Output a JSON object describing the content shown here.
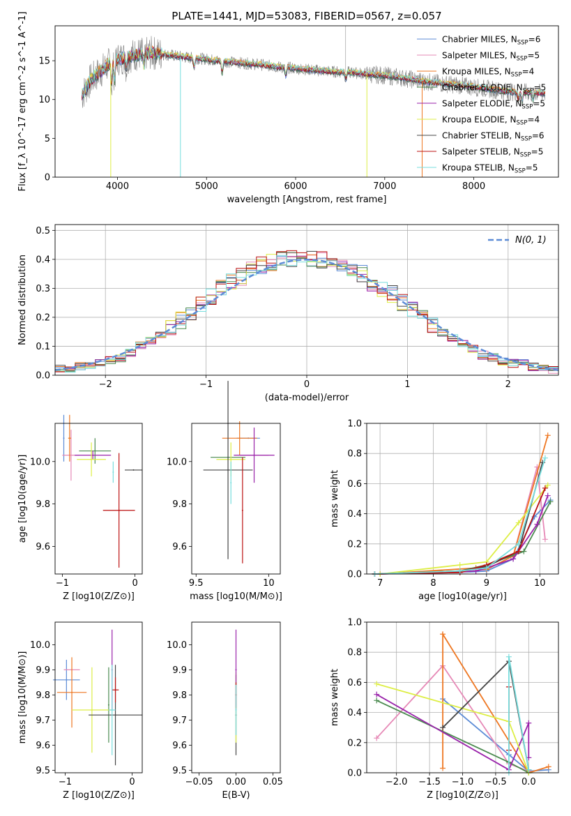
{
  "title": "PLATE=1441, MJD=53083, FIBERID=0567, z=0.057",
  "colors": {
    "Chabrier MILES": "#5b8bd6",
    "Salpeter MILES": "#e688b6",
    "Kroupa MILES": "#ee7722",
    "Chabrier ELODIE": "#4a8a4f",
    "Salpeter ELODIE": "#9922aa",
    "Kroupa ELODIE": "#ddee44",
    "Chabrier STELIB": "#444444",
    "Salpeter STELIB": "#bb1111",
    "Kroupa STELIB": "#77dddd",
    "Data": "#808080"
  },
  "chart_data": [
    {
      "id": "spectrum",
      "type": "line",
      "xlabel": "wavelength [Angstrom, rest frame]",
      "ylabel": "Flux [f_λ 10^-17 erg cm^-2 s^-1 A^-1]",
      "xlim": [
        3300,
        8950
      ],
      "ylim": [
        0,
        19.5
      ],
      "xticks": [
        4000,
        5000,
        6000,
        7000,
        8000
      ],
      "yticks": [
        0,
        5,
        10,
        15
      ],
      "legend": [
        {
          "name": "Chabrier MILES",
          "nssp": "6"
        },
        {
          "name": "Salpeter MILES",
          "nssp": "5"
        },
        {
          "name": "Kroupa MILES",
          "nssp": "4"
        },
        {
          "name": "Chabrier ELODIE",
          "nssp": "5"
        },
        {
          "name": "Salpeter ELODIE",
          "nssp": "5"
        },
        {
          "name": "Kroupa ELODIE",
          "nssp": "4"
        },
        {
          "name": "Chabrier STELIB",
          "nssp": "6"
        },
        {
          "name": "Salpeter STELIB",
          "nssp": "5"
        },
        {
          "name": "Kroupa STELIB",
          "nssp": "5"
        }
      ],
      "continuum": [
        [
          3600,
          10.5
        ],
        [
          3700,
          12.5
        ],
        [
          3800,
          13.5
        ],
        [
          3900,
          14.5
        ],
        [
          4000,
          15.2
        ],
        [
          4200,
          15.8
        ],
        [
          4400,
          16.0
        ],
        [
          4600,
          15.7
        ],
        [
          4800,
          15.4
        ],
        [
          5000,
          15.2
        ],
        [
          5200,
          14.9
        ],
        [
          5400,
          14.7
        ],
        [
          5600,
          14.5
        ],
        [
          5800,
          14.2
        ],
        [
          6000,
          14.0
        ],
        [
          6200,
          13.8
        ],
        [
          6400,
          13.6
        ],
        [
          6600,
          13.5
        ],
        [
          6800,
          13.3
        ],
        [
          7000,
          13.1
        ],
        [
          7200,
          12.8
        ],
        [
          7400,
          12.4
        ],
        [
          7600,
          12.1
        ],
        [
          7800,
          11.9
        ],
        [
          8000,
          11.6
        ],
        [
          8200,
          11.3
        ],
        [
          8400,
          11.0
        ],
        [
          8600,
          10.9
        ],
        [
          8800,
          10.8
        ]
      ]
    },
    {
      "id": "residuals",
      "type": "bar",
      "xlabel": "(data-model)/error",
      "ylabel": "Normed distribution",
      "xlim": [
        -2.5,
        2.5
      ],
      "ylim": [
        0,
        0.52
      ],
      "xticks": [
        -2,
        -1,
        0,
        1,
        2
      ],
      "yticks": [
        0.0,
        0.1,
        0.2,
        0.3,
        0.4,
        0.5
      ],
      "bin_width": 0.1,
      "gaussian_label": "N(0, 1)",
      "base_profile": [
        0.02,
        0.02,
        0.03,
        0.03,
        0.04,
        0.05,
        0.06,
        0.08,
        0.1,
        0.12,
        0.14,
        0.16,
        0.19,
        0.22,
        0.24,
        0.27,
        0.3,
        0.32,
        0.34,
        0.37,
        0.38,
        0.39,
        0.4,
        0.4,
        0.4,
        0.4,
        0.4,
        0.39,
        0.38,
        0.37,
        0.35,
        0.32,
        0.3,
        0.28,
        0.25,
        0.23,
        0.2,
        0.17,
        0.15,
        0.13,
        0.11,
        0.09,
        0.07,
        0.06,
        0.05,
        0.04,
        0.04,
        0.03,
        0.03,
        0.02
      ]
    },
    {
      "id": "age-vs-Z",
      "type": "scatter",
      "xlabel": "Z [log10(Z/Z⊙)]",
      "ylabel": "age [log10(age/yr)]",
      "xlim": [
        -1.1,
        0.1
      ],
      "ylim": [
        9.47,
        10.18
      ],
      "xticks": [
        -1,
        0
      ],
      "yticks": [
        9.6,
        9.8,
        10.0
      ],
      "points": [
        {
          "model": "Chabrier MILES",
          "x": -0.98,
          "xe": 0.0,
          "y": 10.11,
          "ye": 0.11
        },
        {
          "model": "Salpeter MILES",
          "x": -0.88,
          "xe": 0.12,
          "y": 10.03,
          "ye": 0.12
        },
        {
          "model": "Kroupa MILES",
          "x": -0.9,
          "xe": 0.02,
          "y": 10.11,
          "ye": 0.11
        },
        {
          "model": "Chabrier ELODIE",
          "x": -0.55,
          "xe": 0.22,
          "y": 10.05,
          "ye": 0.06
        },
        {
          "model": "Salpeter ELODIE",
          "x": -0.58,
          "xe": 0.25,
          "y": 10.03,
          "ye": 0.02
        },
        {
          "model": "Kroupa ELODIE",
          "x": -0.6,
          "xe": 0.2,
          "y": 10.01,
          "ye": 0.08
        },
        {
          "model": "Chabrier STELIB",
          "x": -0.02,
          "xe": 0.12,
          "y": 9.96,
          "ye": 0.0
        },
        {
          "model": "Salpeter STELIB",
          "x": -0.22,
          "xe": 0.22,
          "y": 9.77,
          "ye": 0.27
        },
        {
          "model": "Kroupa STELIB",
          "x": -0.3,
          "xe": 0.0,
          "y": 9.95,
          "ye": 0.05
        }
      ]
    },
    {
      "id": "age-vs-mass",
      "type": "scatter",
      "xlabel": "mass [log10(M/M⊙)]",
      "ylabel": "",
      "xlim": [
        9.47,
        10.08
      ],
      "ylim": [
        9.47,
        10.18
      ],
      "xticks": [
        9.5,
        10.0
      ],
      "yticks": [
        9.6,
        9.8,
        10.0
      ],
      "points": [
        {
          "model": "Chabrier MILES",
          "x": 9.86,
          "xe": 0.08,
          "y": 10.11,
          "ye": 0.0
        },
        {
          "model": "Salpeter MILES",
          "x": 9.9,
          "xe": 0.1,
          "y": 10.03,
          "ye": 0.0
        },
        {
          "model": "Kroupa MILES",
          "x": 9.8,
          "xe": 0.12,
          "y": 10.11,
          "ye": 0.08
        },
        {
          "model": "Chabrier ELODIE",
          "x": 9.72,
          "xe": 0.12,
          "y": 10.02,
          "ye": 0.0
        },
        {
          "model": "Salpeter ELODIE",
          "x": 9.9,
          "xe": 0.14,
          "y": 10.03,
          "ye": 0.13
        },
        {
          "model": "Kroupa ELODIE",
          "x": 9.74,
          "xe": 0.1,
          "y": 10.01,
          "ye": 0.08
        },
        {
          "model": "Chabrier STELIB",
          "x": 9.72,
          "xe": 0.17,
          "y": 9.96,
          "ye": 0.42
        },
        {
          "model": "Salpeter STELIB",
          "x": 9.82,
          "xe": 0.0,
          "y": 9.77,
          "ye": 0.25
        },
        {
          "model": "Kroupa STELIB",
          "x": 9.74,
          "xe": 0.0,
          "y": 9.9,
          "ye": 0.1
        }
      ]
    },
    {
      "id": "mass-weight-vs-age",
      "type": "line",
      "xlabel": "age [log10(age/yr)]",
      "ylabel": "mass weight",
      "xlim": [
        6.75,
        10.35
      ],
      "ylim": [
        0,
        1.0
      ],
      "xticks": [
        7,
        8,
        9,
        10
      ],
      "yticks": [
        0.0,
        0.2,
        0.4,
        0.6,
        0.8,
        1.0
      ],
      "series": [
        {
          "model": "Chabrier MILES",
          "x": [
            6.9,
            8.5,
            9.0,
            9.5,
            9.9,
            10.2
          ],
          "y": [
            0.0,
            0.01,
            0.02,
            0.1,
            0.38,
            0.49
          ]
        },
        {
          "model": "Salpeter MILES",
          "x": [
            6.9,
            8.5,
            9.0,
            9.5,
            9.95,
            10.1
          ],
          "y": [
            0.0,
            0.01,
            0.03,
            0.12,
            0.71,
            0.23
          ]
        },
        {
          "model": "Kroupa MILES",
          "x": [
            7.0,
            8.8,
            9.0,
            9.5,
            10.15
          ],
          "y": [
            0.0,
            0.04,
            0.03,
            0.12,
            0.92
          ]
        },
        {
          "model": "Chabrier ELODIE",
          "x": [
            6.9,
            8.5,
            9.0,
            9.7,
            10.2
          ],
          "y": [
            0.0,
            0.02,
            0.06,
            0.15,
            0.48
          ]
        },
        {
          "model": "Salpeter ELODIE",
          "x": [
            7.0,
            8.8,
            9.0,
            9.5,
            9.95,
            10.15
          ],
          "y": [
            0.0,
            0.02,
            0.04,
            0.1,
            0.33,
            0.52
          ]
        },
        {
          "model": "Kroupa ELODIE",
          "x": [
            7.0,
            8.5,
            9.0,
            9.6,
            10.15
          ],
          "y": [
            0.0,
            0.06,
            0.08,
            0.34,
            0.59
          ]
        },
        {
          "model": "Chabrier STELIB",
          "x": [
            6.9,
            8.5,
            9.0,
            9.6,
            10.05
          ],
          "y": [
            0.0,
            0.02,
            0.05,
            0.15,
            0.74
          ]
        },
        {
          "model": "Salpeter STELIB",
          "x": [
            6.9,
            8.5,
            9.0,
            9.6,
            10.1
          ],
          "y": [
            0.0,
            0.01,
            0.06,
            0.15,
            0.57
          ]
        },
        {
          "model": "Kroupa STELIB",
          "x": [
            6.9,
            8.5,
            9.0,
            9.6,
            10.1
          ],
          "y": [
            0.0,
            0.02,
            0.04,
            0.2,
            0.77
          ]
        }
      ]
    },
    {
      "id": "mass-vs-Z",
      "type": "scatter",
      "xlabel": "Z [log10(Z/Z⊙)]",
      "ylabel": "mass [log10(M/M⊙)]",
      "xlim": [
        -1.15,
        0.15
      ],
      "ylim": [
        9.49,
        10.09
      ],
      "xticks": [
        -1,
        0
      ],
      "yticks": [
        9.5,
        9.6,
        9.7,
        9.8,
        9.9,
        10.0
      ],
      "points": [
        {
          "model": "Chabrier MILES",
          "x": -0.98,
          "xe": 0.2,
          "y": 9.86,
          "ye": 0.08
        },
        {
          "model": "Salpeter MILES",
          "x": -0.9,
          "xe": 0.12,
          "y": 9.9,
          "ye": 0.0
        },
        {
          "model": "Kroupa MILES",
          "x": -0.9,
          "xe": 0.22,
          "y": 9.81,
          "ye": 0.14
        },
        {
          "model": "Chabrier ELODIE",
          "x": -0.35,
          "xe": 0.0,
          "y": 9.76,
          "ye": 0.15
        },
        {
          "model": "Salpeter ELODIE",
          "x": -0.3,
          "xe": 0.0,
          "y": 9.9,
          "ye": 0.16
        },
        {
          "model": "Kroupa ELODIE",
          "x": -0.6,
          "xe": 0.3,
          "y": 9.74,
          "ye": 0.17
        },
        {
          "model": "Chabrier STELIB",
          "x": -0.25,
          "xe": 0.4,
          "y": 9.72,
          "ye": 0.2
        },
        {
          "model": "Salpeter STELIB",
          "x": -0.25,
          "xe": 0.05,
          "y": 9.82,
          "ye": 0.05
        },
        {
          "model": "Kroupa STELIB",
          "x": -0.3,
          "xe": 0.05,
          "y": 9.74,
          "ye": 0.18
        }
      ]
    },
    {
      "id": "mass-vs-ebv",
      "type": "scatter",
      "xlabel": "E(B-V)",
      "ylabel": "",
      "xlim": [
        -0.06,
        0.06
      ],
      "ylim": [
        9.49,
        10.09
      ],
      "xticks": [
        -0.05,
        0.0,
        0.05
      ],
      "xticklabels": [
        "−0.05",
        "0.00",
        "0.05"
      ],
      "yticks": [
        9.5,
        9.6,
        9.7,
        9.8,
        9.9,
        10.0
      ],
      "points": [
        {
          "model": "Chabrier STELIB",
          "x": 0.0,
          "xe": 0.0,
          "y": 9.72,
          "ye": 0.16
        },
        {
          "model": "Kroupa ELODIE",
          "x": 0.0,
          "xe": 0.0,
          "y": 9.75,
          "ye": 0.14
        },
        {
          "model": "Salpeter ELODIE",
          "x": 0.0,
          "xe": 0.0,
          "y": 9.9,
          "ye": 0.16
        },
        {
          "model": "Salpeter STELIB",
          "x": 0.0,
          "xe": 0.0,
          "y": 9.8,
          "ye": 0.05
        },
        {
          "model": "Kroupa STELIB",
          "x": 0.0,
          "xe": 0.0,
          "y": 9.74,
          "ye": 0.1
        }
      ]
    },
    {
      "id": "mass-weight-vs-Z",
      "type": "line",
      "xlabel": "Z [log10(Z/Z⊙)]",
      "ylabel": "mass weight",
      "xlim": [
        -2.45,
        0.45
      ],
      "ylim": [
        0,
        1.0
      ],
      "xticks": [
        -2.0,
        -1.5,
        -1.0,
        -0.5,
        0.0
      ],
      "xticklabels": [
        "−2.0",
        "−1.5",
        "−1.0",
        "−0.5",
        "0.0"
      ],
      "yticks": [
        0.0,
        0.2,
        0.4,
        0.6,
        0.8,
        1.0
      ],
      "series": [
        {
          "model": "Chabrier MILES",
          "x": [
            -1.3,
            -0.3,
            0.0,
            0.3
          ],
          "y": [
            0.49,
            0.12,
            0.01,
            0.02
          ]
        },
        {
          "model": "Salpeter MILES",
          "x": [
            -2.3,
            -1.3,
            -0.3,
            0.0
          ],
          "y": [
            0.23,
            0.71,
            0.06,
            0.01
          ]
        },
        {
          "model": "Kroupa MILES",
          "x": [
            -1.3,
            -1.3,
            0.0,
            0.3
          ],
          "y": [
            0.03,
            0.92,
            0.0,
            0.04
          ]
        },
        {
          "model": "Chabrier ELODIE",
          "x": [
            -2.3,
            -0.3,
            0.0
          ],
          "y": [
            0.48,
            0.07,
            0.0
          ]
        },
        {
          "model": "Salpeter ELODIE",
          "x": [
            -2.3,
            -0.3,
            0.0,
            0.0
          ],
          "y": [
            0.52,
            0.02,
            0.33,
            0.1
          ]
        },
        {
          "model": "Kroupa ELODIE",
          "x": [
            -2.3,
            -0.3,
            0.0
          ],
          "y": [
            0.59,
            0.34,
            0.0
          ]
        },
        {
          "model": "Chabrier STELIB",
          "x": [
            -1.3,
            -0.3,
            0.0
          ],
          "y": [
            0.3,
            0.74,
            0.02
          ]
        },
        {
          "model": "Salpeter STELIB",
          "x": [
            -0.3,
            -0.3
          ],
          "y": [
            0.15,
            0.57
          ]
        },
        {
          "model": "Kroupa STELIB",
          "x": [
            -0.3,
            -0.3,
            0.0
          ],
          "y": [
            0.0,
            0.77,
            0.02
          ]
        }
      ]
    }
  ]
}
